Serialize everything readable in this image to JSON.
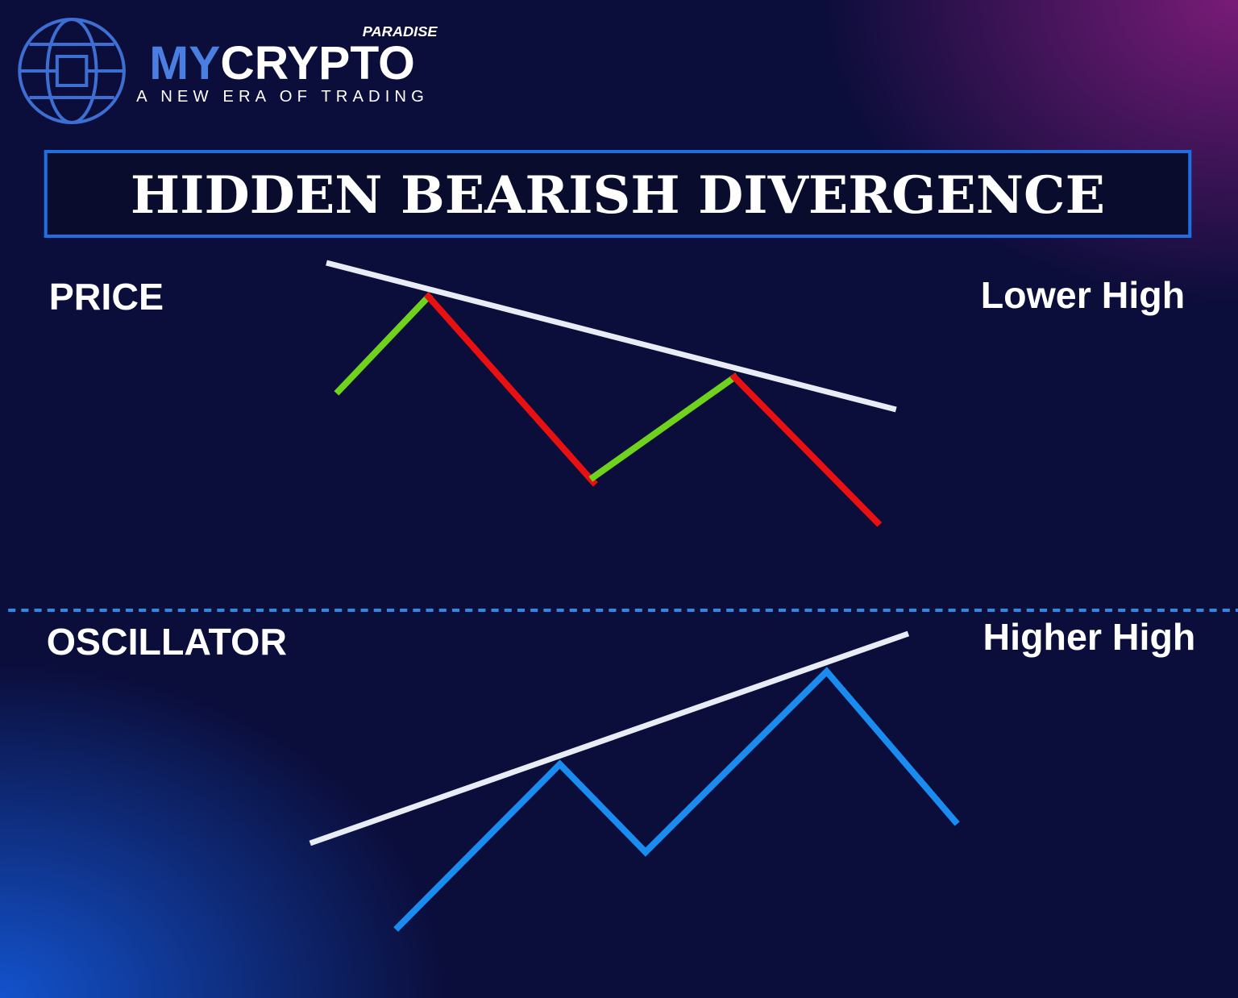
{
  "logo": {
    "tag": "PARADISE",
    "brand_first": "MY",
    "brand_second": "CRYPTO",
    "tagline": "A NEW ERA OF TRADING"
  },
  "title": "HIDDEN BEARISH DIVERGENCE",
  "price_panel": {
    "label": "PRICE",
    "annotation": "Lower High"
  },
  "oscillator_panel": {
    "label": "OSCILLATOR",
    "annotation": "Higher High"
  }
}
